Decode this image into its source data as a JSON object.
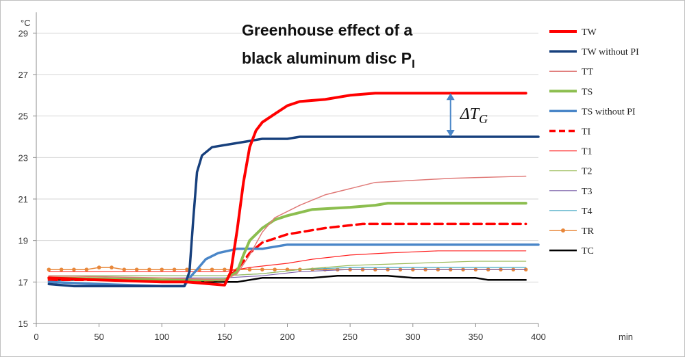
{
  "chart_data": {
    "type": "line",
    "title_line1": "Greenhouse effect of a",
    "title_line2": "black aluminum disc P",
    "title_subscript": "I",
    "ylabel": "°C",
    "xlabel": "min",
    "xlim": [
      0,
      400
    ],
    "ylim": [
      15,
      30
    ],
    "x_ticks": [
      0,
      50,
      100,
      150,
      200,
      250,
      300,
      350,
      400
    ],
    "y_ticks": [
      15,
      17,
      19,
      21,
      23,
      25,
      27,
      29
    ],
    "grid": "horizontal",
    "legend_position": "right",
    "annotation": {
      "symbol": "ΔT",
      "subscript": "G",
      "x": 330,
      "y_from": 24,
      "y_to": 26.1
    },
    "series": [
      {
        "name": "TW",
        "color": "#ff0000",
        "width": 4,
        "dash": "",
        "marker": false,
        "points": [
          [
            10,
            17.2
          ],
          [
            50,
            17.1
          ],
          [
            100,
            17
          ],
          [
            120,
            17
          ],
          [
            140,
            16.9
          ],
          [
            150,
            16.85
          ],
          [
            155,
            17.5
          ],
          [
            160,
            19.5
          ],
          [
            165,
            21.8
          ],
          [
            170,
            23.5
          ],
          [
            175,
            24.3
          ],
          [
            180,
            24.7
          ],
          [
            190,
            25.1
          ],
          [
            200,
            25.5
          ],
          [
            210,
            25.7
          ],
          [
            230,
            25.8
          ],
          [
            250,
            26
          ],
          [
            270,
            26.1
          ],
          [
            390,
            26.1
          ]
        ]
      },
      {
        "name": "TW without PI",
        "color": "#17407d",
        "width": 3.5,
        "dash": "",
        "marker": false,
        "points": [
          [
            10,
            16.9
          ],
          [
            30,
            16.8
          ],
          [
            60,
            16.8
          ],
          [
            100,
            16.8
          ],
          [
            118,
            16.8
          ],
          [
            122,
            17.5
          ],
          [
            125,
            20
          ],
          [
            128,
            22.3
          ],
          [
            132,
            23.1
          ],
          [
            140,
            23.5
          ],
          [
            150,
            23.6
          ],
          [
            160,
            23.7
          ],
          [
            170,
            23.8
          ],
          [
            180,
            23.9
          ],
          [
            200,
            23.9
          ],
          [
            210,
            24
          ],
          [
            400,
            24
          ]
        ]
      },
      {
        "name": "TT",
        "color": "#e07a78",
        "width": 1.5,
        "dash": "",
        "marker": false,
        "points": [
          [
            10,
            17.3
          ],
          [
            100,
            17.2
          ],
          [
            150,
            17.1
          ],
          [
            160,
            17.4
          ],
          [
            170,
            18.3
          ],
          [
            180,
            19.4
          ],
          [
            190,
            20.1
          ],
          [
            210,
            20.7
          ],
          [
            230,
            21.2
          ],
          [
            250,
            21.5
          ],
          [
            270,
            21.8
          ],
          [
            300,
            21.9
          ],
          [
            330,
            22
          ],
          [
            390,
            22.1
          ]
        ]
      },
      {
        "name": "TS",
        "color": "#8cbe4f",
        "width": 4,
        "dash": "",
        "marker": false,
        "points": [
          [
            10,
            17.2
          ],
          [
            100,
            17.1
          ],
          [
            150,
            17.1
          ],
          [
            160,
            17.5
          ],
          [
            165,
            18.3
          ],
          [
            170,
            19
          ],
          [
            180,
            19.6
          ],
          [
            190,
            20
          ],
          [
            200,
            20.2
          ],
          [
            220,
            20.5
          ],
          [
            250,
            20.6
          ],
          [
            270,
            20.7
          ],
          [
            280,
            20.8
          ],
          [
            390,
            20.8
          ]
        ]
      },
      {
        "name": "TS without PI",
        "color": "#4a86c8",
        "width": 3.5,
        "dash": "",
        "marker": false,
        "points": [
          [
            10,
            17
          ],
          [
            50,
            16.9
          ],
          [
            100,
            16.8
          ],
          [
            118,
            16.8
          ],
          [
            122,
            17.2
          ],
          [
            128,
            17.6
          ],
          [
            135,
            18.1
          ],
          [
            145,
            18.4
          ],
          [
            160,
            18.6
          ],
          [
            180,
            18.6
          ],
          [
            200,
            18.8
          ],
          [
            400,
            18.8
          ]
        ]
      },
      {
        "name": "TI",
        "color": "#ff0000",
        "width": 3.5,
        "dash": "12,7",
        "marker": false,
        "points": [
          [
            10,
            17.1
          ],
          [
            60,
            17.1
          ],
          [
            100,
            17
          ],
          [
            150,
            17.1
          ],
          [
            160,
            17.6
          ],
          [
            170,
            18.4
          ],
          [
            180,
            18.9
          ],
          [
            200,
            19.3
          ],
          [
            230,
            19.6
          ],
          [
            260,
            19.8
          ],
          [
            390,
            19.8
          ]
        ]
      },
      {
        "name": "T1",
        "color": "#ff2020",
        "width": 1.2,
        "dash": "",
        "marker": false,
        "points": [
          [
            10,
            17.5
          ],
          [
            100,
            17.5
          ],
          [
            150,
            17.5
          ],
          [
            170,
            17.7
          ],
          [
            200,
            17.9
          ],
          [
            220,
            18.1
          ],
          [
            250,
            18.3
          ],
          [
            280,
            18.4
          ],
          [
            320,
            18.5
          ],
          [
            390,
            18.5
          ]
        ]
      },
      {
        "name": "T2",
        "color": "#9bbb59",
        "width": 1.2,
        "dash": "",
        "marker": false,
        "points": [
          [
            10,
            17.3
          ],
          [
            100,
            17.3
          ],
          [
            150,
            17.3
          ],
          [
            180,
            17.4
          ],
          [
            210,
            17.6
          ],
          [
            250,
            17.8
          ],
          [
            300,
            17.9
          ],
          [
            350,
            18
          ],
          [
            390,
            18
          ]
        ]
      },
      {
        "name": "T3",
        "color": "#7a5fa8",
        "width": 1.2,
        "dash": "",
        "marker": false,
        "points": [
          [
            10,
            17.2
          ],
          [
            100,
            17.2
          ],
          [
            150,
            17.2
          ],
          [
            180,
            17.3
          ],
          [
            210,
            17.5
          ],
          [
            250,
            17.6
          ],
          [
            300,
            17.6
          ],
          [
            390,
            17.6
          ]
        ]
      },
      {
        "name": "T4",
        "color": "#4bacc6",
        "width": 1.2,
        "dash": "",
        "marker": false,
        "points": [
          [
            10,
            17.3
          ],
          [
            100,
            17.3
          ],
          [
            150,
            17.3
          ],
          [
            180,
            17.4
          ],
          [
            210,
            17.6
          ],
          [
            250,
            17.7
          ],
          [
            300,
            17.7
          ],
          [
            390,
            17.7
          ]
        ]
      },
      {
        "name": "TR",
        "color": "#e8873a",
        "width": 1.5,
        "dash": "",
        "marker": true,
        "points": [
          [
            10,
            17.6
          ],
          [
            20,
            17.6
          ],
          [
            30,
            17.6
          ],
          [
            40,
            17.6
          ],
          [
            50,
            17.7
          ],
          [
            60,
            17.7
          ],
          [
            70,
            17.6
          ],
          [
            80,
            17.6
          ],
          [
            90,
            17.6
          ],
          [
            100,
            17.6
          ],
          [
            110,
            17.6
          ],
          [
            120,
            17.6
          ],
          [
            130,
            17.6
          ],
          [
            140,
            17.6
          ],
          [
            150,
            17.6
          ],
          [
            160,
            17.6
          ],
          [
            170,
            17.6
          ],
          [
            180,
            17.6
          ],
          [
            190,
            17.6
          ],
          [
            200,
            17.6
          ],
          [
            210,
            17.6
          ],
          [
            220,
            17.6
          ],
          [
            230,
            17.6
          ],
          [
            240,
            17.6
          ],
          [
            250,
            17.6
          ],
          [
            260,
            17.6
          ],
          [
            270,
            17.6
          ],
          [
            280,
            17.6
          ],
          [
            290,
            17.6
          ],
          [
            300,
            17.6
          ],
          [
            310,
            17.6
          ],
          [
            320,
            17.6
          ],
          [
            330,
            17.6
          ],
          [
            340,
            17.6
          ],
          [
            350,
            17.6
          ],
          [
            360,
            17.6
          ],
          [
            370,
            17.6
          ],
          [
            380,
            17.6
          ],
          [
            390,
            17.6
          ]
        ]
      },
      {
        "name": "TC",
        "color": "#000000",
        "width": 2.5,
        "dash": "",
        "marker": false,
        "points": [
          [
            10,
            17.1
          ],
          [
            50,
            17.1
          ],
          [
            100,
            17
          ],
          [
            150,
            17
          ],
          [
            160,
            17
          ],
          [
            180,
            17.2
          ],
          [
            200,
            17.2
          ],
          [
            220,
            17.2
          ],
          [
            240,
            17.3
          ],
          [
            280,
            17.3
          ],
          [
            300,
            17.2
          ],
          [
            350,
            17.2
          ],
          [
            360,
            17.1
          ],
          [
            390,
            17.1
          ]
        ]
      }
    ]
  }
}
